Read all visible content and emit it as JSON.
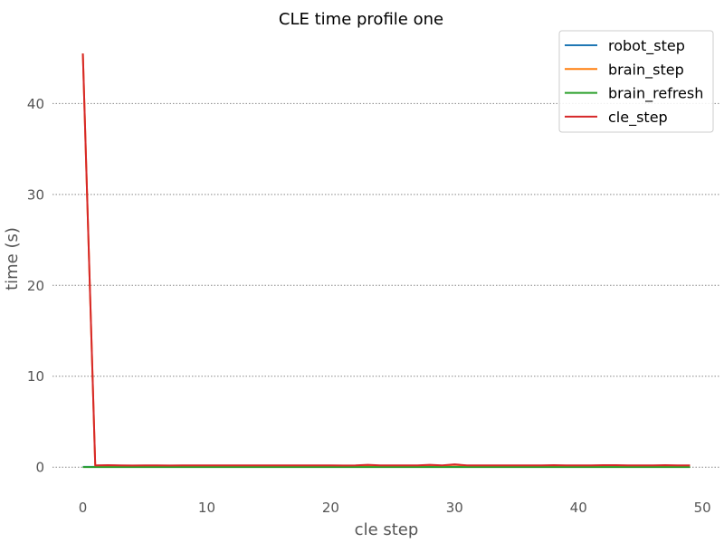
{
  "chart_data": {
    "type": "line",
    "title": "CLE time profile one",
    "xlabel": "cle step",
    "ylabel": "time (s)",
    "xlim": [
      -2.45,
      51.45
    ],
    "ylim": [
      -2.27,
      47.8
    ],
    "x_ticks": [
      0,
      10,
      20,
      30,
      40,
      50
    ],
    "y_ticks": [
      0,
      10,
      20,
      30,
      40
    ],
    "grid": "y-dotted",
    "legend_position": "top-right",
    "x": [
      0,
      1,
      2,
      3,
      4,
      5,
      6,
      7,
      8,
      9,
      10,
      11,
      12,
      13,
      14,
      15,
      16,
      17,
      18,
      19,
      20,
      21,
      22,
      23,
      24,
      25,
      26,
      27,
      28,
      29,
      30,
      31,
      32,
      33,
      34,
      35,
      36,
      37,
      38,
      39,
      40,
      41,
      42,
      43,
      44,
      45,
      46,
      47,
      48,
      49
    ],
    "series": [
      {
        "name": "robot_step",
        "color": "#1f77b4",
        "values": [
          0.03,
          0.03,
          0.03,
          0.03,
          0.03,
          0.03,
          0.03,
          0.03,
          0.03,
          0.03,
          0.03,
          0.03,
          0.03,
          0.03,
          0.03,
          0.03,
          0.03,
          0.03,
          0.03,
          0.03,
          0.03,
          0.03,
          0.03,
          0.03,
          0.03,
          0.03,
          0.03,
          0.03,
          0.03,
          0.03,
          0.03,
          0.03,
          0.03,
          0.03,
          0.03,
          0.03,
          0.03,
          0.03,
          0.03,
          0.03,
          0.03,
          0.03,
          0.03,
          0.03,
          0.03,
          0.03,
          0.03,
          0.03,
          0.03,
          0.03
        ]
      },
      {
        "name": "brain_step",
        "color": "#ff7f0e",
        "values": [
          45.5,
          0.15,
          0.15,
          0.15,
          0.12,
          0.15,
          0.14,
          0.12,
          0.15,
          0.15,
          0.15,
          0.15,
          0.15,
          0.15,
          0.15,
          0.15,
          0.15,
          0.15,
          0.15,
          0.15,
          0.15,
          0.12,
          0.15,
          0.2,
          0.15,
          0.15,
          0.15,
          0.15,
          0.22,
          0.15,
          0.25,
          0.15,
          0.15,
          0.15,
          0.15,
          0.15,
          0.15,
          0.15,
          0.18,
          0.15,
          0.15,
          0.15,
          0.18,
          0.18,
          0.15,
          0.15,
          0.15,
          0.18,
          0.15,
          0.15
        ]
      },
      {
        "name": "brain_refresh",
        "color": "#2ca02c",
        "values": [
          0.01,
          0.01,
          0.01,
          0.01,
          0.01,
          0.01,
          0.01,
          0.01,
          0.01,
          0.01,
          0.01,
          0.01,
          0.01,
          0.01,
          0.01,
          0.01,
          0.01,
          0.01,
          0.01,
          0.01,
          0.01,
          0.01,
          0.01,
          0.01,
          0.01,
          0.01,
          0.01,
          0.01,
          0.01,
          0.01,
          0.01,
          0.01,
          0.01,
          0.01,
          0.01,
          0.01,
          0.01,
          0.01,
          0.01,
          0.01,
          0.01,
          0.01,
          0.01,
          0.01,
          0.01,
          0.01,
          0.01,
          0.01,
          0.01,
          0.01
        ]
      },
      {
        "name": "cle_step",
        "color": "#d62728",
        "values": [
          45.5,
          0.2,
          0.22,
          0.2,
          0.18,
          0.2,
          0.2,
          0.18,
          0.2,
          0.2,
          0.2,
          0.2,
          0.2,
          0.2,
          0.2,
          0.2,
          0.2,
          0.2,
          0.2,
          0.2,
          0.2,
          0.18,
          0.2,
          0.25,
          0.2,
          0.2,
          0.2,
          0.2,
          0.26,
          0.2,
          0.3,
          0.2,
          0.2,
          0.2,
          0.2,
          0.2,
          0.2,
          0.2,
          0.22,
          0.2,
          0.2,
          0.2,
          0.22,
          0.22,
          0.2,
          0.2,
          0.2,
          0.22,
          0.2,
          0.2
        ]
      }
    ]
  }
}
